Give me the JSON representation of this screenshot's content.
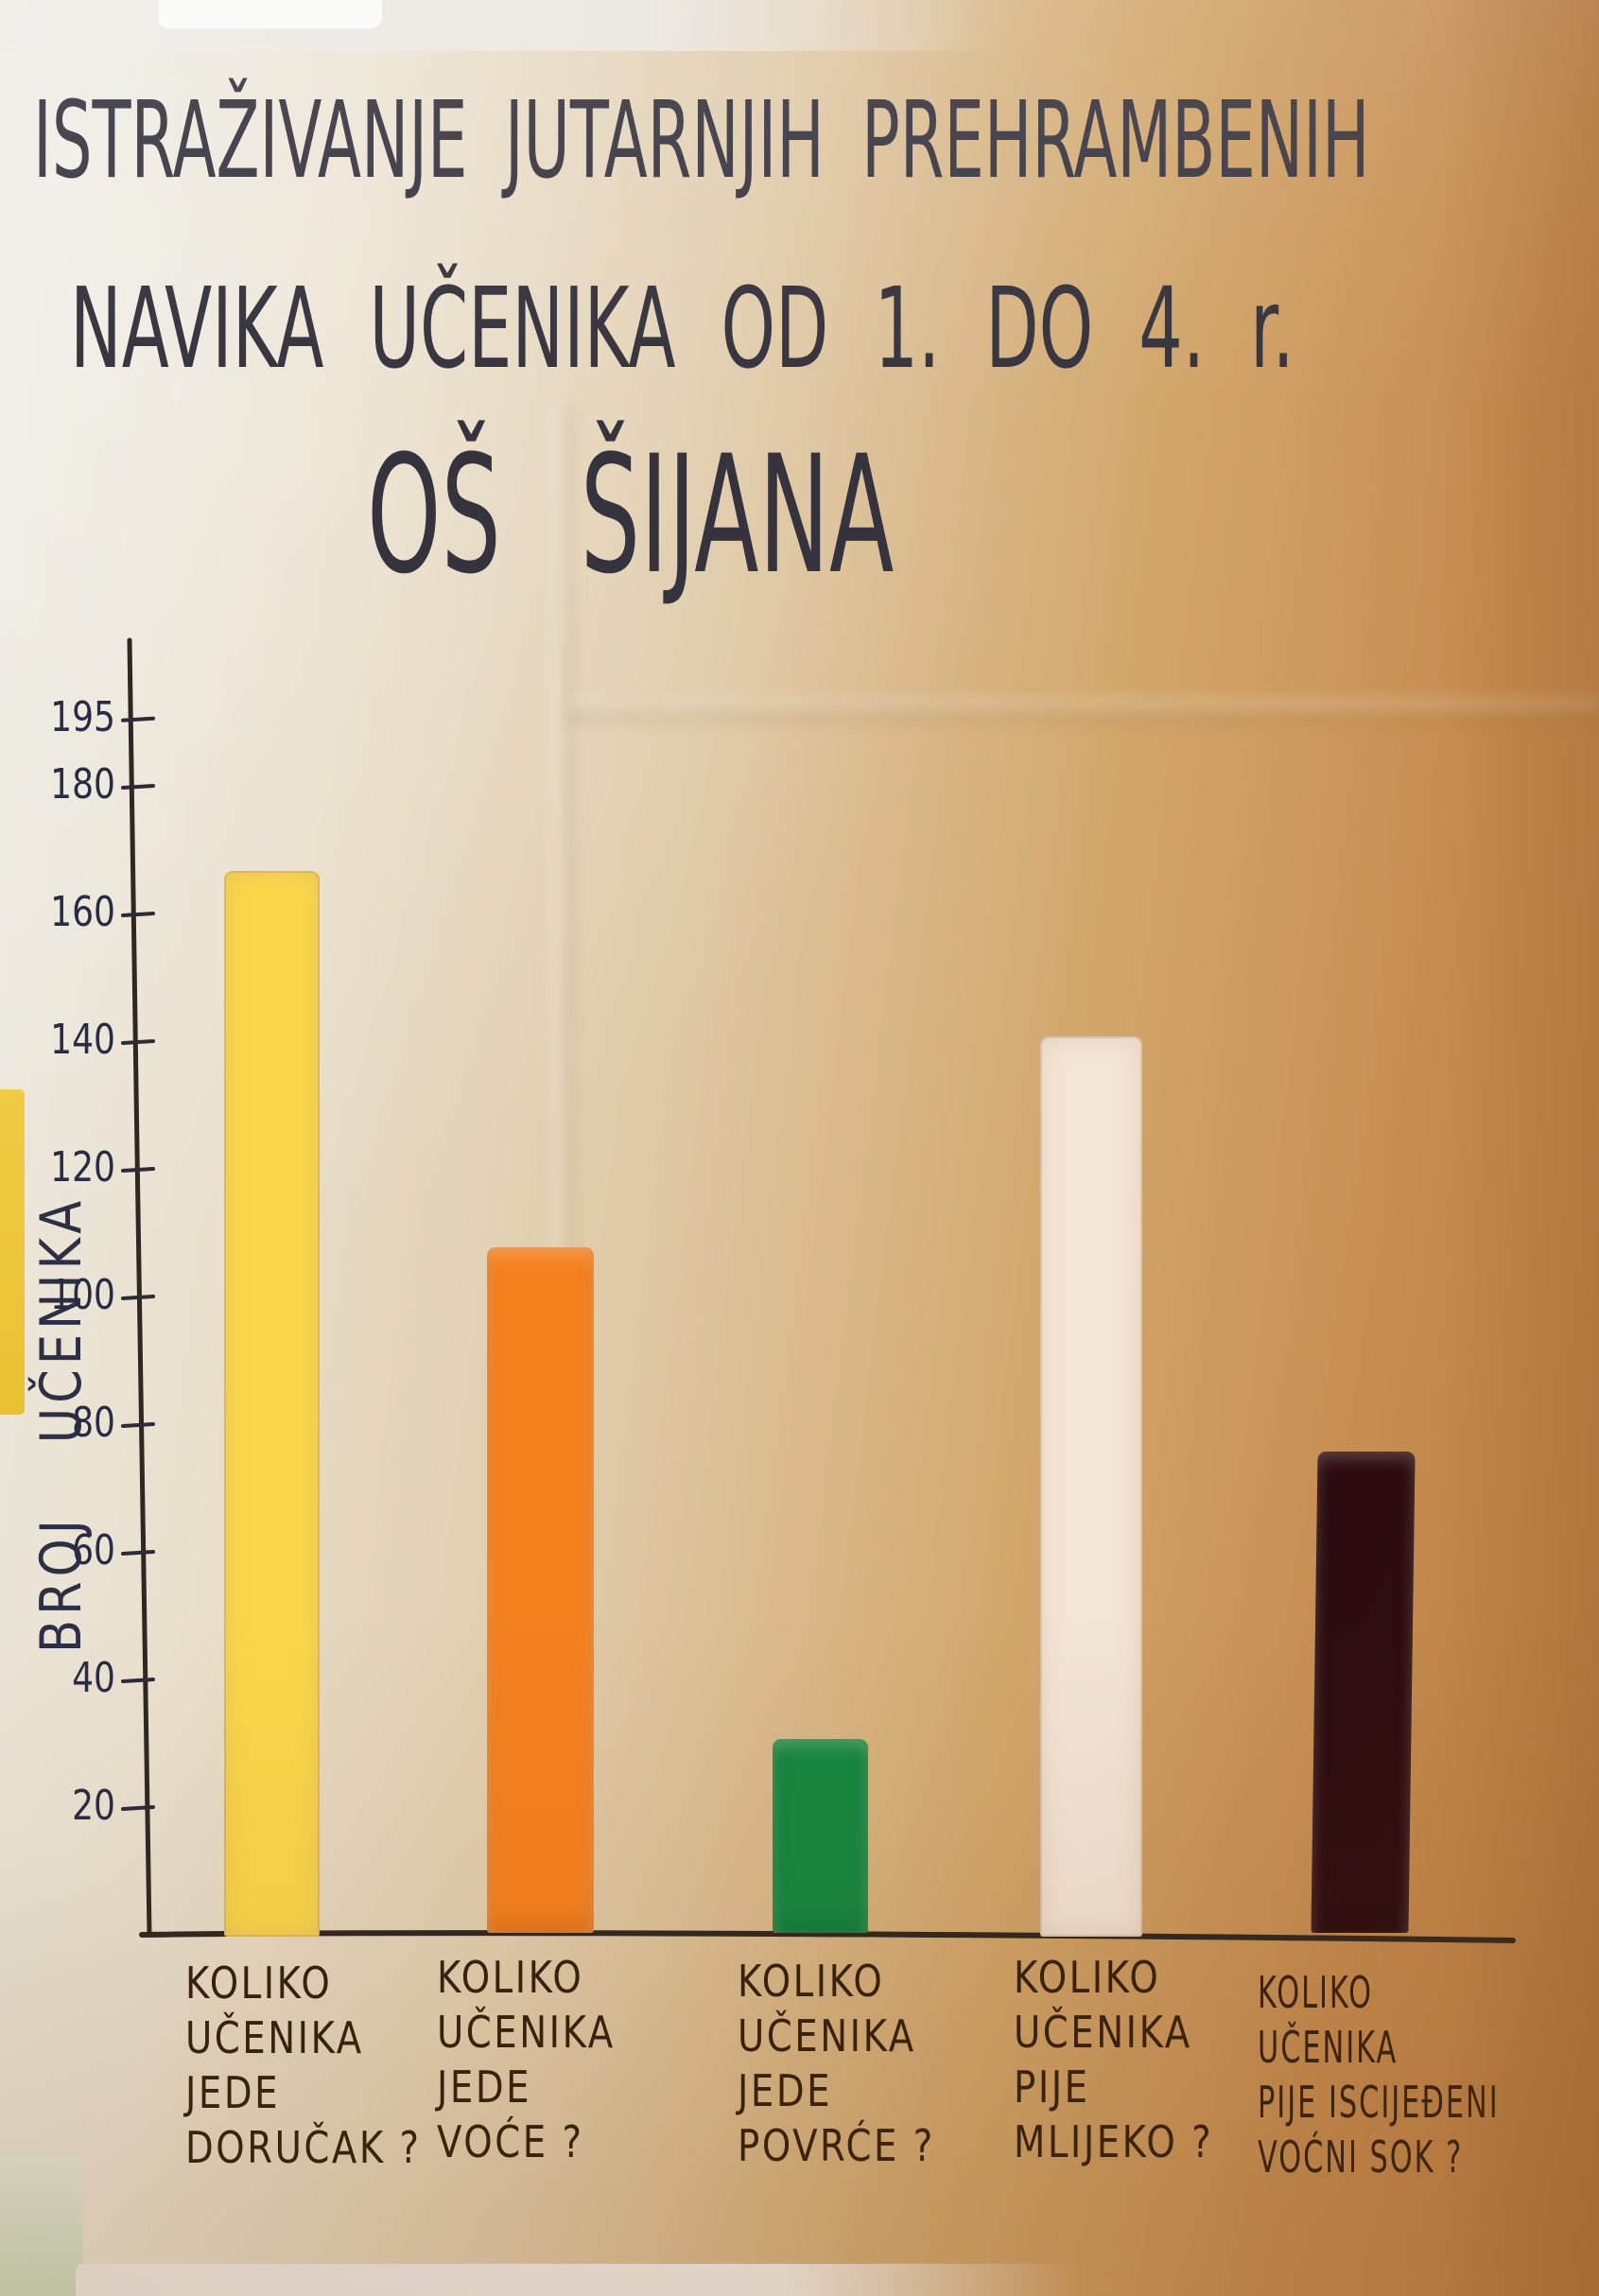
{
  "poster": {
    "title_line1": "ISTRAŽIVANJE JUTARNJIH PREHRAMBENIH",
    "title_line2": "NAVIKA UČENIKA OD 1. DO 4. r.",
    "title_line3": "OŠ ŠIJANA"
  },
  "chart_data": {
    "type": "bar",
    "title": "ISTRAŽIVANJE JUTARNJIH PREHRAMBENIH NAVIKA UČENIKA OD 1. DO 4. r. OŠ ŠIJANA",
    "xlabel": "",
    "ylabel": "BROJ UČENIKA",
    "ylim": [
      0,
      200
    ],
    "yticks": [
      195,
      180,
      160,
      140,
      120,
      100,
      80,
      60,
      40,
      20
    ],
    "grid": false,
    "legend_position": "none",
    "categories": [
      "KOLIKO UČENIKA JEDE DORUČAK?",
      "KOLIKO UČENIKA JEDE VOĆE?",
      "KOLIKO UČENIKA JEDE POVRĆE?",
      "KOLIKO UČENIKA PIJE MLIJEKO?",
      "KOLIKO UČENIKA PIJE ISCIJEĐENI VOĆNI SOK?"
    ],
    "values": [
      167,
      108,
      31,
      141,
      76
    ],
    "bar_colors": [
      "#fbd64b",
      "#f5811f",
      "#15873e",
      "#f3e5d7",
      "#2a0b10"
    ],
    "bars": [
      {
        "label_lines": [
          "KOLIKO",
          "UČENIKA",
          "JEDE",
          "DORUČAK ?"
        ],
        "value": 167,
        "color": "#fbd64b"
      },
      {
        "label_lines": [
          "KOLIKO",
          "UČENIKA",
          "JEDE",
          "VOĆE ?"
        ],
        "value": 108,
        "color": "#f5811f"
      },
      {
        "label_lines": [
          "KOLIKO",
          "UČENIKA",
          "JEDE",
          "POVRĆE ?"
        ],
        "value": 31,
        "color": "#15873e"
      },
      {
        "label_lines": [
          "KOLIKO",
          "UČENIKA",
          "PIJE",
          "MLIJEKO ?"
        ],
        "value": 141,
        "color": "#f3e5d7"
      },
      {
        "label_lines": [
          "KOLIKO",
          "UČENIKA",
          "PIJE ISCIJEĐENI",
          "VOĆNI SOK ?"
        ],
        "value": 76,
        "color": "#2a0b10"
      }
    ]
  }
}
